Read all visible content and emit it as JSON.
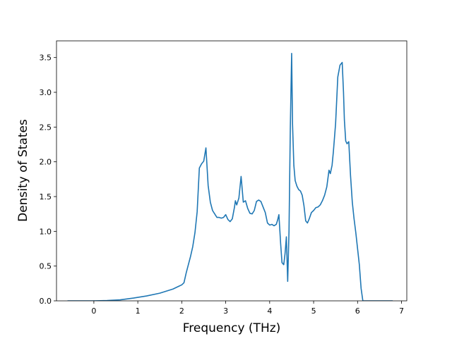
{
  "chart_data": {
    "type": "line",
    "title": "",
    "xlabel": "Frequency (THz)",
    "ylabel": "Density of States",
    "xlim": [
      -0.85,
      7.12
    ],
    "ylim": [
      0,
      3.74
    ],
    "xticks": [
      0,
      1,
      2,
      3,
      4,
      5,
      6,
      7
    ],
    "xtick_labels": [
      "0",
      "1",
      "2",
      "3",
      "4",
      "5",
      "6",
      "7"
    ],
    "yticks": [
      0,
      0.5,
      1.0,
      1.5,
      2.0,
      2.5,
      3.0,
      3.5
    ],
    "ytick_labels": [
      "0.0",
      "0.5",
      "1.0",
      "1.5",
      "2.0",
      "2.5",
      "3.0",
      "3.5"
    ],
    "grid": false,
    "legend": "none",
    "series": [
      {
        "color": "#1f77b4",
        "x": [
          -0.6,
          -0.3,
          0.0,
          0.3,
          0.6,
          0.9,
          1.2,
          1.5,
          1.8,
          1.9,
          2.0,
          2.05,
          2.1,
          2.15,
          2.2,
          2.25,
          2.3,
          2.35,
          2.4,
          2.45,
          2.5,
          2.55,
          2.6,
          2.65,
          2.7,
          2.75,
          2.8,
          2.85,
          2.9,
          2.95,
          3.0,
          3.05,
          3.1,
          3.15,
          3.2,
          3.22,
          3.25,
          3.3,
          3.35,
          3.4,
          3.45,
          3.5,
          3.55,
          3.6,
          3.65,
          3.7,
          3.75,
          3.8,
          3.85,
          3.9,
          3.95,
          4.0,
          4.05,
          4.1,
          4.15,
          4.18,
          4.21,
          4.25,
          4.28,
          4.32,
          4.35,
          4.38,
          4.41,
          4.44,
          4.47,
          4.5,
          4.52,
          4.55,
          4.58,
          4.62,
          4.66,
          4.7,
          4.74,
          4.78,
          4.82,
          4.86,
          4.9,
          4.95,
          5.0,
          5.05,
          5.1,
          5.15,
          5.2,
          5.25,
          5.3,
          5.35,
          5.38,
          5.42,
          5.45,
          5.5,
          5.55,
          5.6,
          5.65,
          5.68,
          5.7,
          5.73,
          5.76,
          5.8,
          5.84,
          5.88,
          5.92,
          5.96,
          6.0,
          6.04,
          6.08,
          6.12,
          6.17,
          6.3,
          6.5,
          6.8
        ],
        "y": [
          0.0,
          0.0,
          0.0,
          0.005,
          0.015,
          0.04,
          0.07,
          0.11,
          0.17,
          0.2,
          0.23,
          0.26,
          0.4,
          0.52,
          0.64,
          0.78,
          0.98,
          1.28,
          1.91,
          1.97,
          2.01,
          2.2,
          1.66,
          1.42,
          1.3,
          1.25,
          1.2,
          1.2,
          1.19,
          1.2,
          1.24,
          1.17,
          1.14,
          1.18,
          1.35,
          1.44,
          1.38,
          1.48,
          1.79,
          1.42,
          1.44,
          1.33,
          1.26,
          1.25,
          1.3,
          1.43,
          1.45,
          1.43,
          1.35,
          1.27,
          1.12,
          1.09,
          1.1,
          1.08,
          1.1,
          1.16,
          1.24,
          0.82,
          0.55,
          0.52,
          0.68,
          0.92,
          0.28,
          1.0,
          2.5,
          3.56,
          2.55,
          1.95,
          1.73,
          1.65,
          1.6,
          1.58,
          1.52,
          1.37,
          1.15,
          1.12,
          1.18,
          1.27,
          1.3,
          1.34,
          1.35,
          1.38,
          1.44,
          1.52,
          1.64,
          1.88,
          1.83,
          1.95,
          2.15,
          2.55,
          3.22,
          3.39,
          3.43,
          3.0,
          2.6,
          2.3,
          2.26,
          2.29,
          1.8,
          1.42,
          1.18,
          0.98,
          0.75,
          0.52,
          0.18,
          0.0,
          0.0,
          0.0,
          0.0,
          0.0
        ]
      }
    ]
  }
}
